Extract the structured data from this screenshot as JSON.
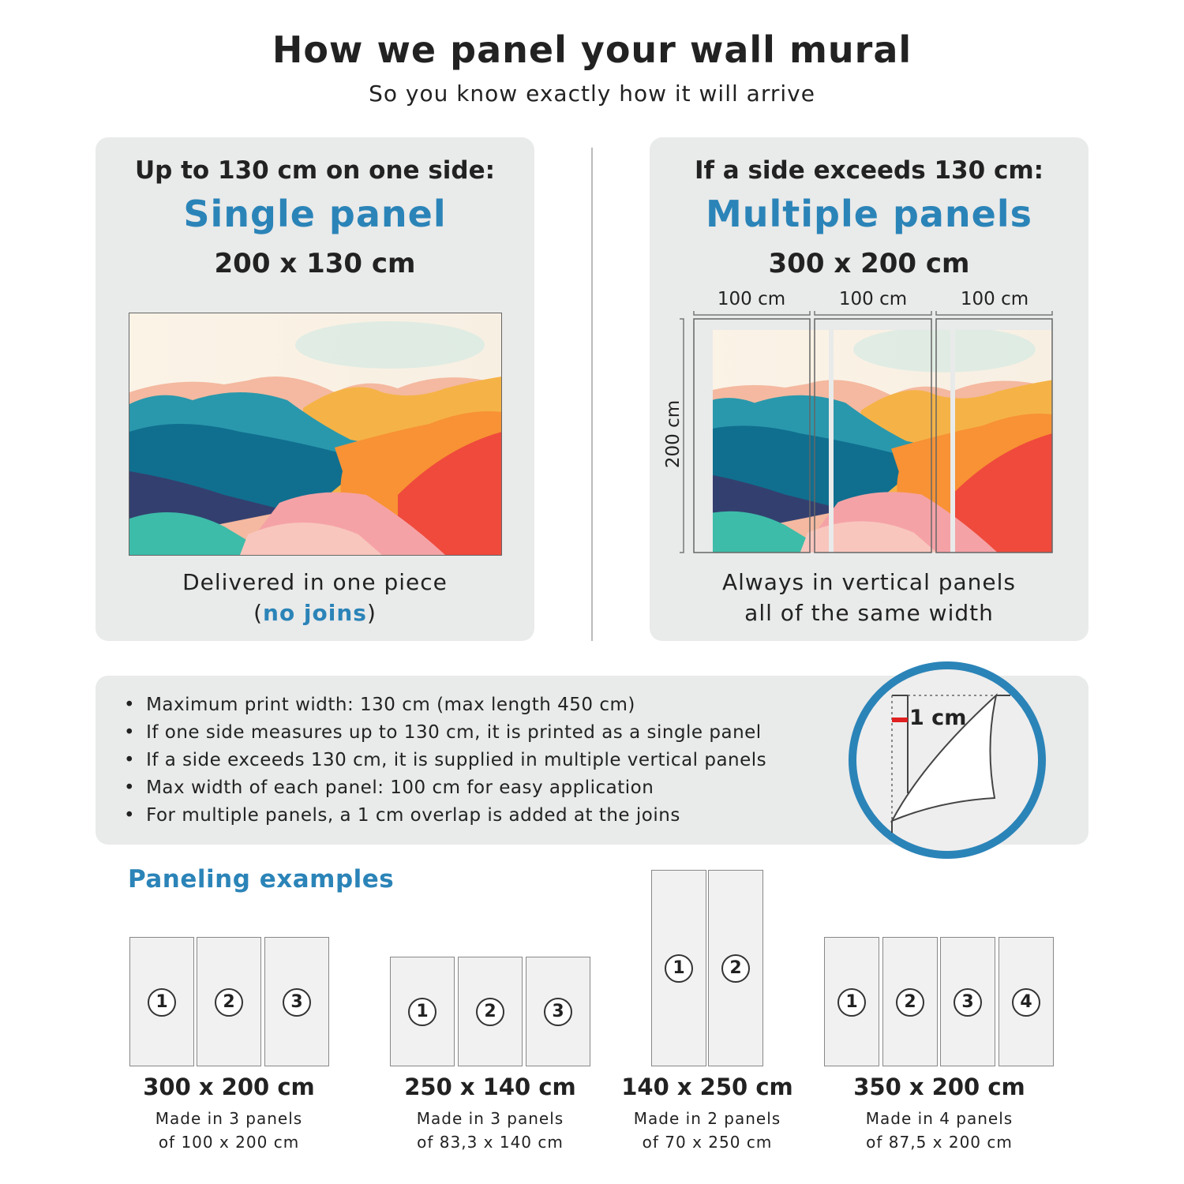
{
  "header": {
    "title": "How we panel your wall mural",
    "subtitle": "So you know exactly how it will arrive"
  },
  "single": {
    "heading": "Up to 130 cm on one side:",
    "type": "Single panel",
    "size": "200 x 130 cm",
    "footer_line1": "Delivered in one piece",
    "footer_open": "(",
    "footer_highlight": "no joins",
    "footer_close": ")"
  },
  "multiple": {
    "heading": "If a side exceeds 130 cm:",
    "type": "Multiple panels",
    "size": "300 x 200 cm",
    "widths": [
      "100 cm",
      "100 cm",
      "100 cm"
    ],
    "height": "200 cm",
    "footer_line1": "Always in vertical panels",
    "footer_line2": "all of the same width"
  },
  "info": {
    "bullets": [
      "Maximum print width: 130 cm (max length 450 cm)",
      "If one side measures up to 130 cm, it is printed as a single panel",
      "If a side exceeds 130 cm, it is supplied in multiple vertical panels",
      "Max width of each panel: 100 cm for easy application",
      "For multiple panels, a 1 cm overlap is added at the joins"
    ],
    "overlap_label": "1 cm"
  },
  "examples": {
    "title": "Paneling examples",
    "items": [
      {
        "size": "300 x 200 cm",
        "line1": "Made in 3 panels",
        "line2": "of 100 x 200 cm",
        "panels": [
          "1",
          "2",
          "3"
        ]
      },
      {
        "size": "250 x 140 cm",
        "line1": "Made in 3 panels",
        "line2": "of 83,3 x 140 cm",
        "panels": [
          "1",
          "2",
          "3"
        ]
      },
      {
        "size": "140 x 250 cm",
        "line1": "Made in 2 panels",
        "line2": "of 70 x 250 cm",
        "panels": [
          "1",
          "2"
        ]
      },
      {
        "size": "350 x 200 cm",
        "line1": "Made in 4 panels",
        "line2": "of 87,5 x 200 cm",
        "panels": [
          "1",
          "2",
          "3",
          "4"
        ]
      }
    ]
  },
  "colors": {
    "accent": "#2b84b8",
    "card": "#e9eaea",
    "overlap_marker": "#e02020"
  }
}
